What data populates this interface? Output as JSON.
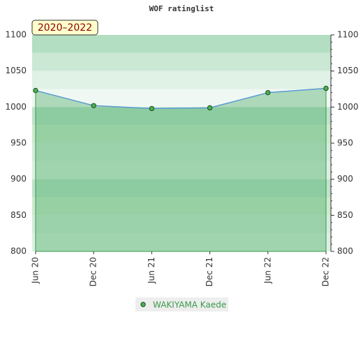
{
  "chart_data": {
    "type": "line",
    "title": "WOF ratinglist",
    "annotation": "2020–2022",
    "categories": [
      "Jun 20",
      "Dec 20",
      "Jun 21",
      "Dec 21",
      "Jun 22",
      "Dec 22"
    ],
    "series": [
      {
        "name": "WAKIYAMA Kaede",
        "color": "#4caf50",
        "line_color": "#5b9bd5",
        "values": [
          1023,
          1002,
          998,
          999,
          1020,
          1026
        ]
      }
    ],
    "ylim": [
      800,
      1100
    ],
    "yticks": [
      800,
      850,
      900,
      950,
      1000,
      1050,
      1100
    ]
  }
}
